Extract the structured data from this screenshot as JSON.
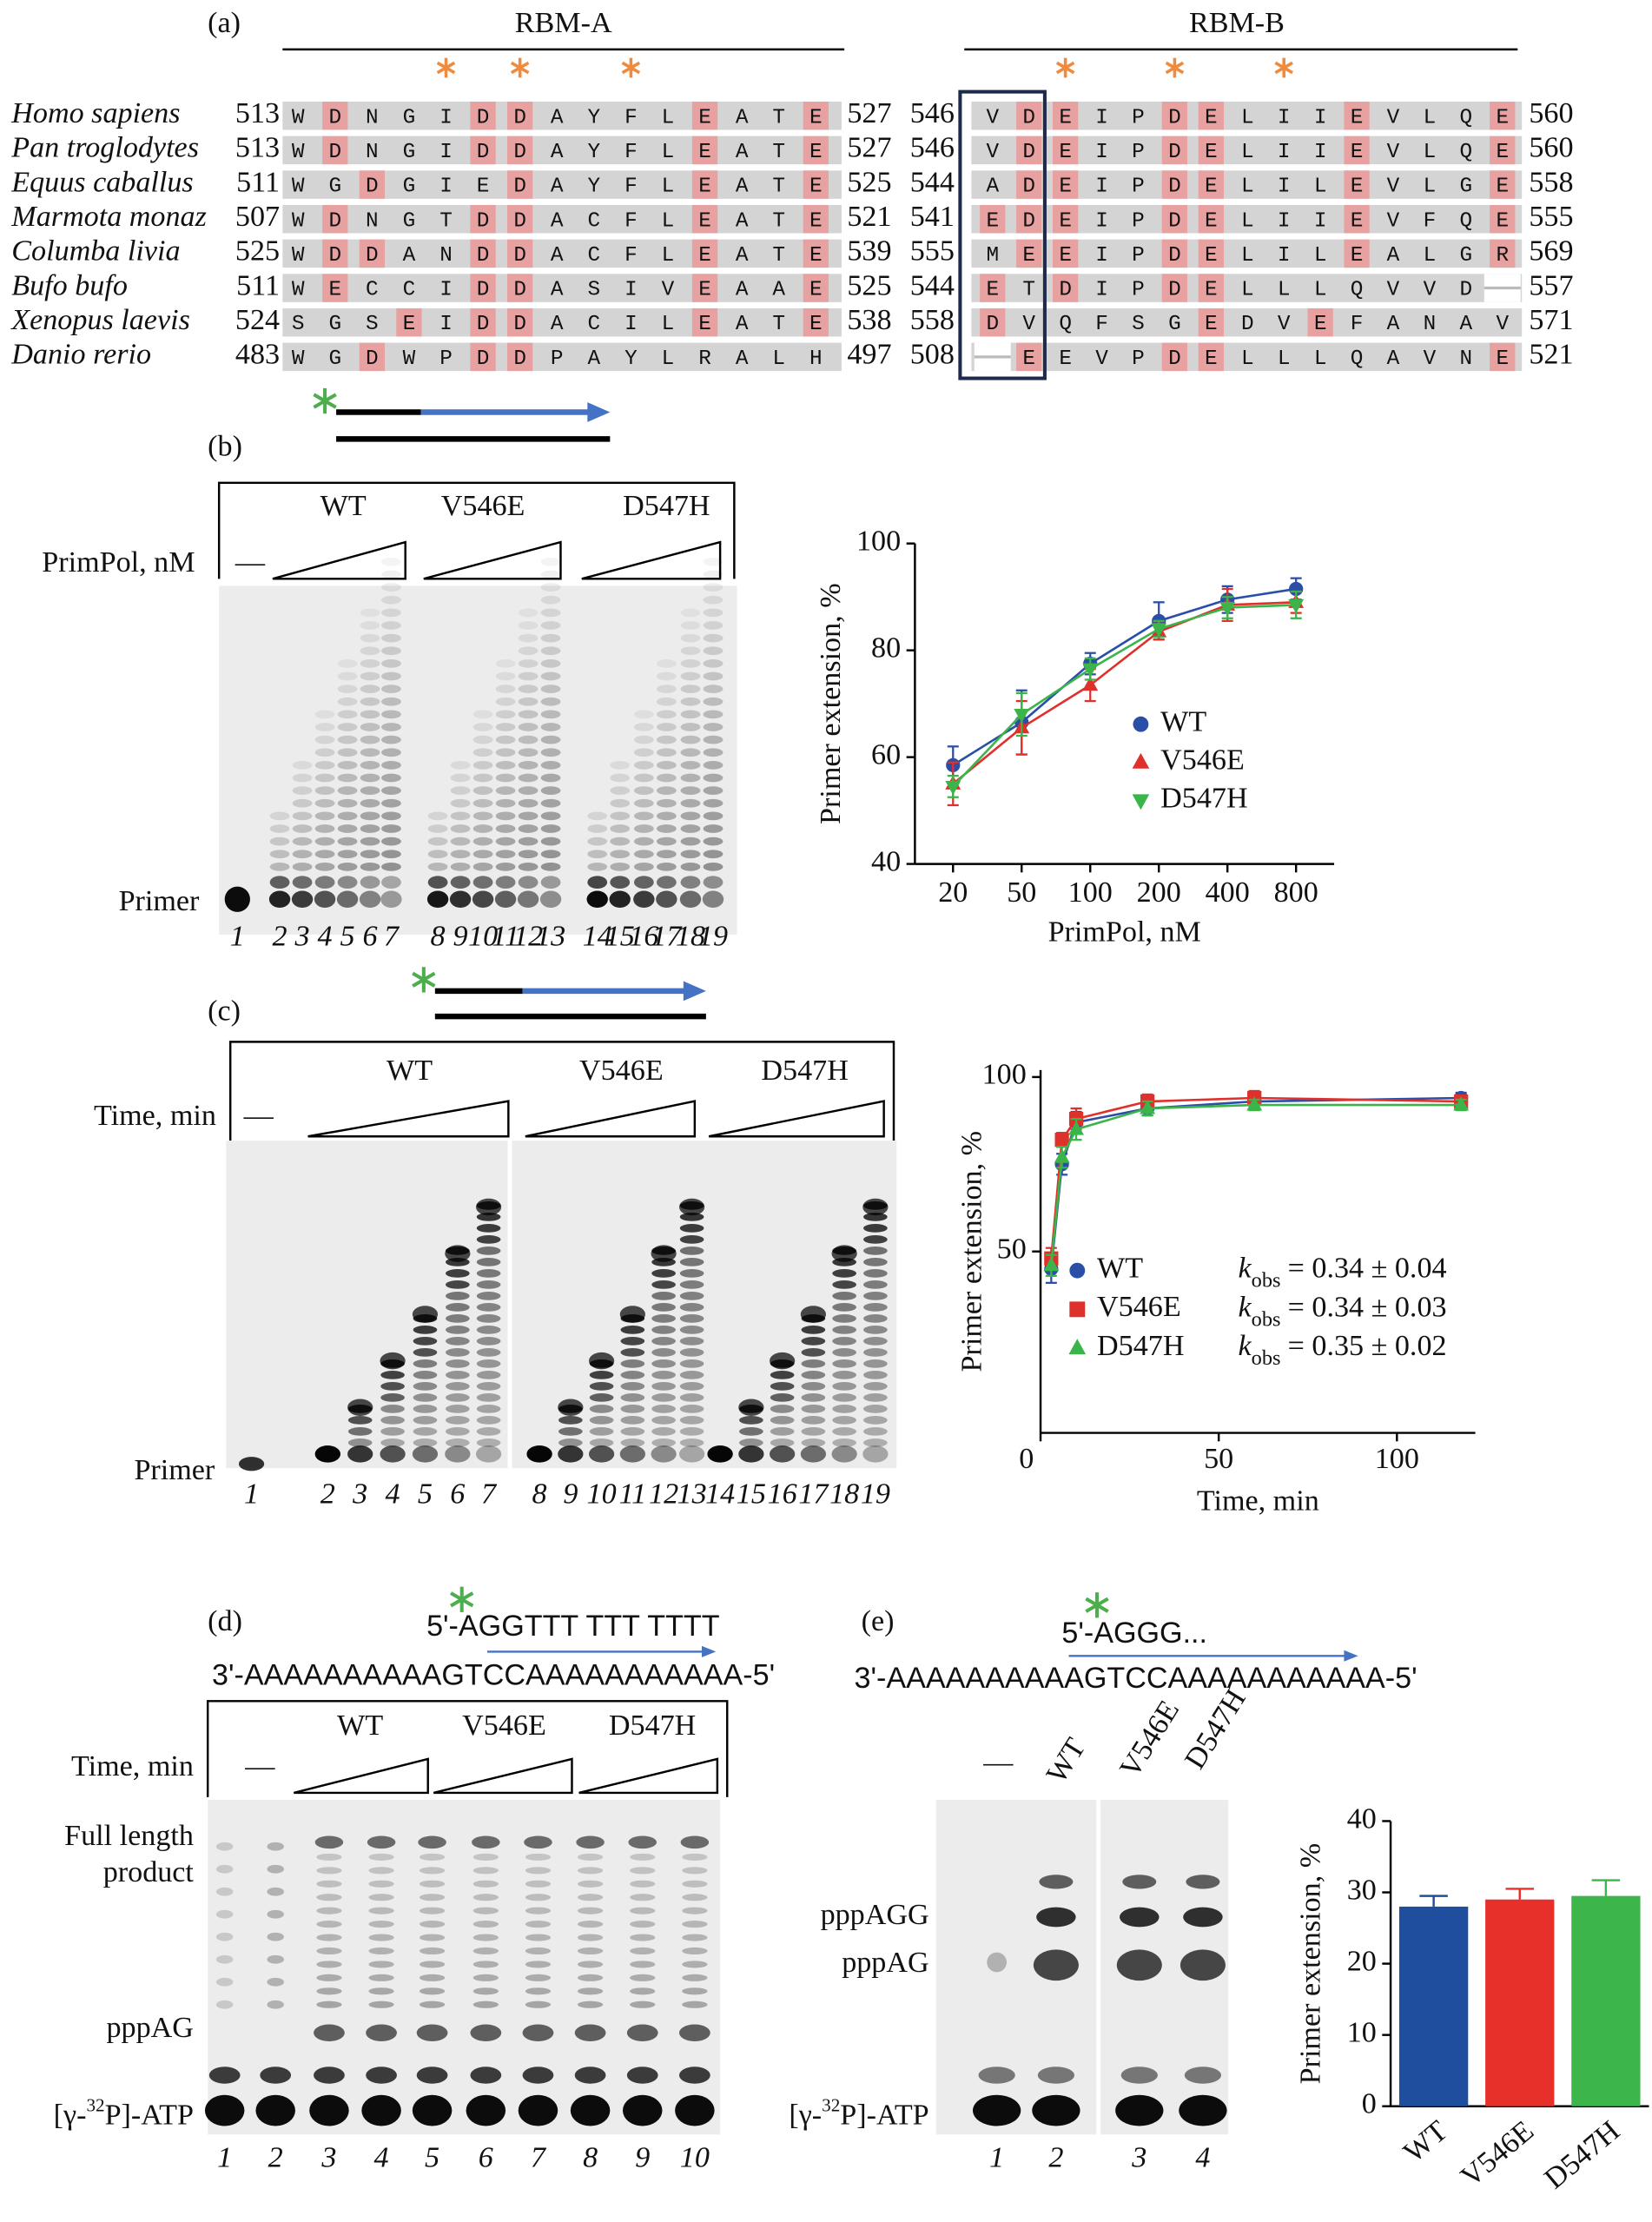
{
  "figure": {
    "panel_a": {
      "label": "(a)",
      "regions": [
        "RBM-A",
        "RBM-B"
      ],
      "rows": [
        {
          "species": "Homo sapiens",
          "a": {
            "start": 513,
            "seq": "WDNGIDDAYFLEATE",
            "end": 527,
            "pink": [
              1,
              5,
              6,
              11,
              14
            ]
          },
          "b": {
            "start": 546,
            "seq": "VDEIPDELIIEVLQE",
            "end": 560,
            "pink": [
              1,
              2,
              5,
              6,
              10,
              14
            ]
          }
        },
        {
          "species": "Pan troglodytes",
          "a": {
            "start": 513,
            "seq": "WDNGIDDAYFLEATE",
            "end": 527,
            "pink": [
              1,
              5,
              6,
              11,
              14
            ]
          },
          "b": {
            "start": 546,
            "seq": "VDEIPDELIIEVLQE",
            "end": 560,
            "pink": [
              1,
              2,
              5,
              6,
              10,
              14
            ]
          }
        },
        {
          "species": "Equus caballus",
          "a": {
            "start": 511,
            "seq": "WGDGIEDAYFLEATE",
            "end": 525,
            "pink": [
              2,
              6,
              11,
              14
            ]
          },
          "b": {
            "start": 544,
            "seq": "ADEIPDELILEVLGE",
            "end": 558,
            "pink": [
              1,
              2,
              5,
              6,
              10,
              14
            ]
          }
        },
        {
          "species": "Marmota monaz",
          "a": {
            "start": 507,
            "seq": "WDNGTDDACFLEATE",
            "end": 521,
            "pink": [
              1,
              5,
              6,
              11,
              14
            ]
          },
          "b": {
            "start": 541,
            "seq": "EDEIPDELIIEVFQE",
            "end": 555,
            "pink": [
              0,
              1,
              2,
              5,
              6,
              10,
              14
            ]
          }
        },
        {
          "species": "Columba livia",
          "a": {
            "start": 525,
            "seq": "WDDANDDACFLEATE",
            "end": 539,
            "pink": [
              1,
              2,
              5,
              6,
              11,
              14
            ]
          },
          "b": {
            "start": 555,
            "seq": "MEEIPDELILEALGR",
            "end": 569,
            "pink": [
              1,
              2,
              5,
              6,
              10,
              14
            ]
          }
        },
        {
          "species": "Bufo bufo",
          "a": {
            "start": 511,
            "seq": "WECCIDDASIVEAAE",
            "end": 525,
            "pink": [
              1,
              5,
              6,
              11,
              14
            ]
          },
          "b": {
            "start": 544,
            "seq": "ETDIPDELLLQVVD-",
            "end": 557,
            "pink": [
              0,
              2,
              5,
              6
            ]
          }
        },
        {
          "species": "Xenopus laevis",
          "a": {
            "start": 524,
            "seq": "SGSEIDDACILEATE",
            "end": 538,
            "pink": [
              3,
              5,
              6,
              11,
              14
            ]
          },
          "b": {
            "start": 558,
            "seq": "DVQFSGEDVEFANAV",
            "end": 571,
            "pink": [
              0,
              6,
              9
            ]
          }
        },
        {
          "species": "Danio rerio",
          "a": {
            "start": 483,
            "seq": "WGDWPDDPAYLRALH",
            "end": 497,
            "pink": [
              2,
              5,
              6
            ]
          },
          "b": {
            "start": 508,
            "seq": "-EEVPDELLLQAVNE",
            "end": 521,
            "pink": [
              1,
              5,
              6,
              14
            ]
          }
        }
      ]
    },
    "panel_b": {
      "label": "(b)",
      "row_label": "PrimPol, nM",
      "blank": "—",
      "groups": [
        "WT",
        "V546E",
        "D547H"
      ],
      "primer": "Primer",
      "lanes": [
        1,
        2,
        3,
        4,
        5,
        6,
        7,
        8,
        9,
        10,
        11,
        12,
        13,
        14,
        15,
        16,
        17,
        18,
        19
      ]
    },
    "panel_c": {
      "label": "(c)",
      "row_label": "Time, min",
      "blank": "—",
      "groups": [
        "WT",
        "V546E",
        "D547H"
      ],
      "primer": "Primer",
      "lanes": [
        1,
        2,
        3,
        4,
        5,
        6,
        7,
        8,
        9,
        10,
        11,
        12,
        13,
        14,
        15,
        16,
        17,
        18,
        19
      ]
    },
    "panel_d": {
      "label": "(d)",
      "primer_seq": "5'-AGGTTT TTT TTTT",
      "template": "3'-AAAAAAAAAAGTCCAAAAAAAAAAA-5'",
      "row_label": "Time, min",
      "blank": "—",
      "groups": [
        "WT",
        "V546E",
        "D547H"
      ],
      "full_length": [
        "Full length",
        "product"
      ],
      "product": "pppAG",
      "atp": {
        "pre": "[γ-",
        "sup": "32",
        "post": "P]-ATP"
      },
      "lanes": [
        1,
        2,
        3,
        4,
        5,
        6,
        7,
        8,
        9,
        10
      ]
    },
    "panel_e": {
      "label": "(e)",
      "primer_seq": "5'-AGGG...",
      "template": "3'-AAAAAAAAAAGTCCAAAAAAAAAAA-5'",
      "blank": "—",
      "lane_labels": [
        "WT",
        "V546E",
        "D547H"
      ],
      "products": [
        "pppAGG",
        "pppAG"
      ],
      "atp": {
        "pre": "[γ-",
        "sup": "32",
        "post": "P]-ATP"
      },
      "lanes": [
        1,
        2,
        3,
        4
      ]
    }
  },
  "chart_data": [
    {
      "type": "line",
      "categories": [
        "20",
        "50",
        "100",
        "200",
        "400",
        "800"
      ],
      "x_label": "PrimPol, nM",
      "y_label": "Primer extension, %",
      "ylim": [
        40,
        100
      ],
      "yticks": [
        40,
        60,
        80,
        100
      ],
      "series": [
        {
          "name": "WT",
          "color": "#2b4fa6",
          "marker": "circle",
          "values": [
            58.5,
            66.5,
            77.5,
            85.5,
            89.5,
            91.5
          ],
          "errors": [
            3.5,
            6,
            2,
            3.5,
            2.5,
            2
          ]
        },
        {
          "name": "V546E",
          "color": "#e0302c",
          "marker": "triangle-up",
          "values": [
            55,
            65.5,
            73.5,
            83.5,
            88.5,
            89
          ],
          "errors": [
            4,
            5,
            3,
            1.5,
            3,
            2
          ]
        },
        {
          "name": "D547H",
          "color": "#3bb54a",
          "marker": "triangle-down",
          "values": [
            54.5,
            68,
            76.5,
            84,
            88,
            88.5
          ],
          "errors": [
            2,
            4,
            2,
            1.5,
            2,
            2.5
          ]
        }
      ]
    },
    {
      "type": "line",
      "x": [
        3,
        6,
        10,
        30,
        60,
        118
      ],
      "x_label": "Time, min",
      "y_label": "Primer extension, %",
      "xlim": [
        0,
        122
      ],
      "xticks": [
        0,
        50,
        100
      ],
      "ylim": [
        -2,
        102
      ],
      "yticks": [
        50,
        100
      ],
      "k_symbol": "k",
      "k_subscript": "obs",
      "series": [
        {
          "name": "WT",
          "color": "#2b4fa6",
          "marker": "circle",
          "values": [
            45,
            75,
            87,
            91,
            93,
            94
          ],
          "errors": [
            4,
            3,
            3,
            2,
            2,
            1.5
          ],
          "kobs": "= 0.34 ± 0.04"
        },
        {
          "name": "V546E",
          "color": "#e0302c",
          "marker": "square",
          "values": [
            48,
            82,
            88,
            93,
            94,
            93
          ],
          "errors": [
            3,
            2,
            3,
            2,
            2,
            1.5
          ],
          "kobs": "= 0.34 ± 0.03"
        },
        {
          "name": "D547H",
          "color": "#3bb54a",
          "marker": "triangle-up",
          "values": [
            46,
            77,
            85,
            91,
            92,
            92
          ],
          "errors": [
            3,
            3,
            3,
            2,
            1.5,
            1.5
          ],
          "kobs": "= 0.35 ± 0.02"
        }
      ]
    },
    {
      "type": "bar",
      "categories": [
        "WT",
        "V546E",
        "D547H"
      ],
      "values": [
        28,
        29,
        29.5
      ],
      "errors": [
        1.5,
        1.5,
        2.2
      ],
      "colors": [
        "#1f4e9e",
        "#e8302a",
        "#3cb54a"
      ],
      "y_label": "Primer extension, %",
      "ylim": [
        0,
        40
      ],
      "yticks": [
        0,
        10,
        20,
        30,
        40
      ]
    }
  ]
}
